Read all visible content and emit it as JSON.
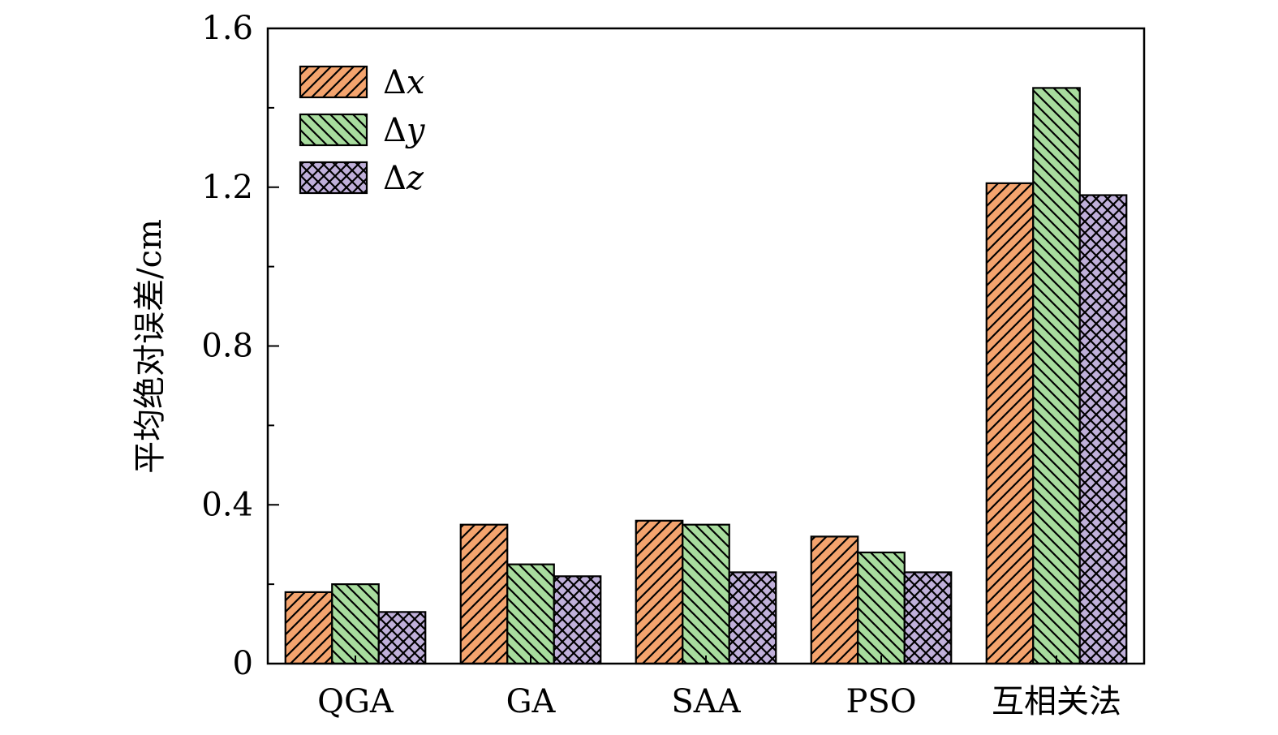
{
  "chart_data": {
    "type": "bar",
    "title": "",
    "xlabel": "",
    "ylabel": "平均绝对误差/cm",
    "ylim": [
      0,
      1.6
    ],
    "yticks": [
      0,
      0.4,
      0.8,
      1.2,
      1.6
    ],
    "ytick_labels": [
      "0",
      "0.4",
      "0.8",
      "1.2",
      "1.6"
    ],
    "categories": [
      "QGA",
      "GA",
      "SAA",
      "PSO",
      "互相关法"
    ],
    "legend_position": "top-left",
    "grid": false,
    "series": [
      {
        "name": "Δx",
        "symbol": "Δ",
        "var": "x",
        "color": "#F4A46E",
        "pattern": "diagonal-up",
        "values": [
          0.18,
          0.35,
          0.36,
          0.32,
          1.21
        ]
      },
      {
        "name": "Δy",
        "symbol": "Δ",
        "var": "y",
        "color": "#A8DC9E",
        "pattern": "diagonal-down",
        "values": [
          0.2,
          0.25,
          0.35,
          0.28,
          1.45
        ]
      },
      {
        "name": "Δz",
        "symbol": "Δ",
        "var": "z",
        "color": "#C0B0DA",
        "pattern": "crosshatch",
        "values": [
          0.13,
          0.22,
          0.23,
          0.23,
          1.18
        ]
      }
    ]
  }
}
